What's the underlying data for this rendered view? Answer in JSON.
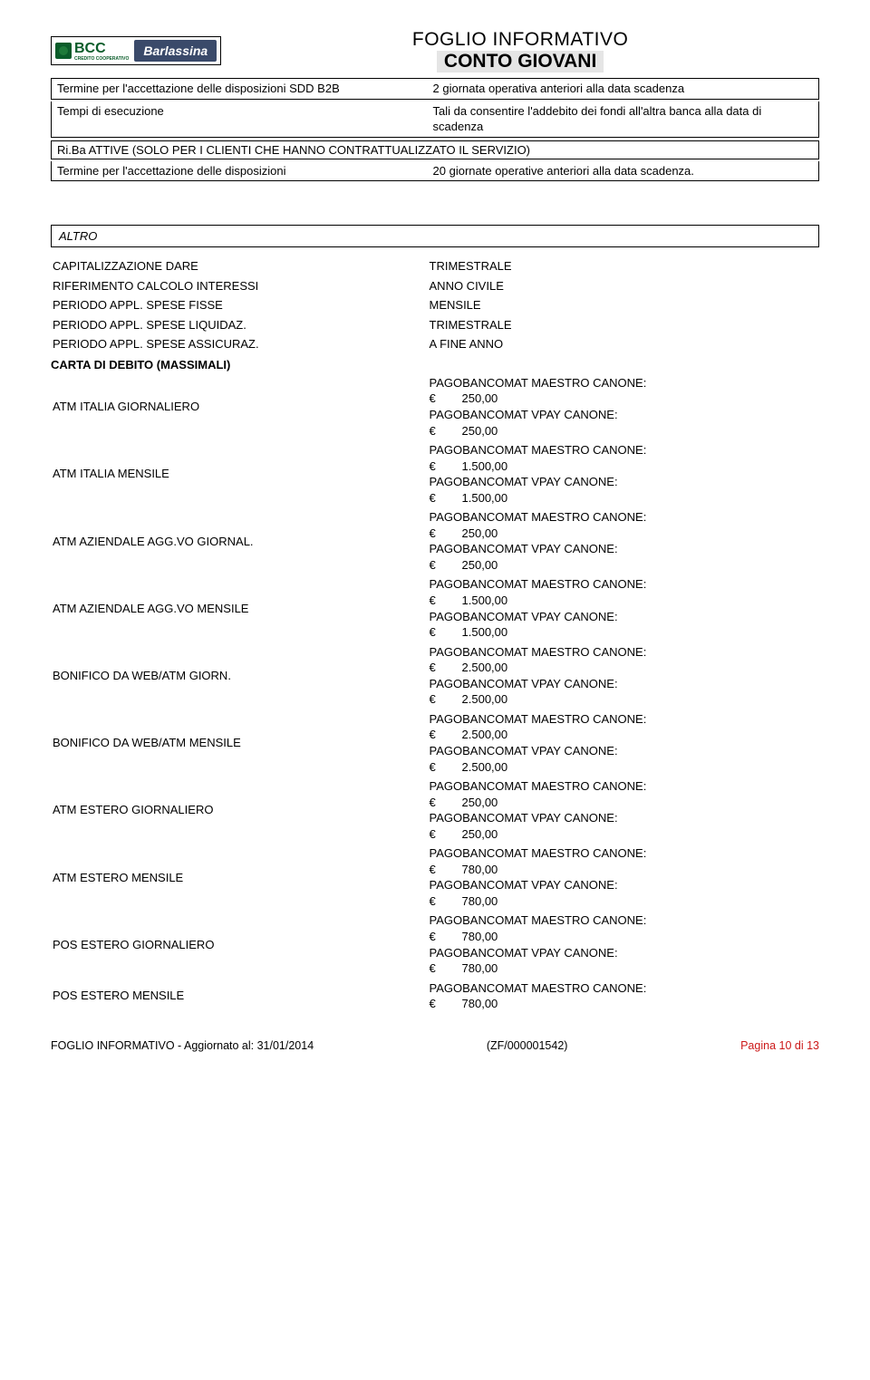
{
  "header": {
    "logo_text": "BCC",
    "logo_sub": "CREDITO COOPERATIVO",
    "brand": "Barlassina",
    "title_line1": "FOGLIO INFORMATIVO",
    "title_line2": "CONTO GIOVANI"
  },
  "top_table": {
    "rows": [
      {
        "k": "Termine per l'accettazione delle disposizioni SDD B2B",
        "v": "2 giornata operativa anteriori alla data scadenza"
      },
      {
        "k": "Tempi di esecuzione",
        "v": "Tali da consentire l'addebito dei fondi all'altra banca alla data di scadenza"
      }
    ]
  },
  "riba": {
    "header": "Ri.Ba ATTIVE (SOLO PER I CLIENTI CHE HANNO CONTRATTUALIZZATO IL SERVIZIO)",
    "rows": [
      {
        "k": "Termine per l'accettazione delle disposizioni",
        "v": "20 giornate operative anteriori alla data scadenza."
      }
    ]
  },
  "altro": {
    "title": "ALTRO",
    "rows": [
      {
        "k": "CAPITALIZZAZIONE DARE",
        "v": "TRIMESTRALE"
      },
      {
        "k": "RIFERIMENTO CALCOLO INTERESSI",
        "v": "ANNO CIVILE"
      },
      {
        "k": "PERIODO APPL. SPESE FISSE",
        "v": "MENSILE"
      },
      {
        "k": "PERIODO APPL. SPESE LIQUIDAZ.",
        "v": "TRIMESTRALE"
      },
      {
        "k": "PERIODO APPL. SPESE ASSICURAZ.",
        "v": "A FINE ANNO"
      }
    ]
  },
  "carta": {
    "title": "CARTA DI DEBITO (MASSIMALI)",
    "label_maestro": "PAGOBANCOMAT MAESTRO CANONE:",
    "label_vpay": "PAGOBANCOMAT VPAY CANONE:",
    "euro": "€",
    "rows": [
      {
        "k": "ATM ITALIA GIORNALIERO",
        "a1": "250,00",
        "a2": "250,00"
      },
      {
        "k": "ATM ITALIA MENSILE",
        "a1": "1.500,00",
        "a2": "1.500,00"
      },
      {
        "k": "ATM AZIENDALE AGG.VO GIORNAL.",
        "a1": "250,00",
        "a2": "250,00"
      },
      {
        "k": "ATM AZIENDALE AGG.VO MENSILE",
        "a1": "1.500,00",
        "a2": "1.500,00"
      },
      {
        "k": "BONIFICO DA WEB/ATM GIORN.",
        "a1": "2.500,00",
        "a2": "2.500,00"
      },
      {
        "k": "BONIFICO DA WEB/ATM MENSILE",
        "a1": "2.500,00",
        "a2": "2.500,00"
      },
      {
        "k": "ATM ESTERO GIORNALIERO",
        "a1": "250,00",
        "a2": "250,00"
      },
      {
        "k": "ATM ESTERO MENSILE",
        "a1": "780,00",
        "a2": "780,00"
      },
      {
        "k": "POS ESTERO GIORNALIERO",
        "a1": "780,00",
        "a2": "780,00"
      }
    ],
    "last": {
      "k": "POS ESTERO MENSILE",
      "a1": "780,00"
    }
  },
  "footer": {
    "left": "FOGLIO INFORMATIVO - Aggiornato al: 31/01/2014",
    "mid": "(ZF/000001542)",
    "right": "Pagina 10 di 13"
  }
}
